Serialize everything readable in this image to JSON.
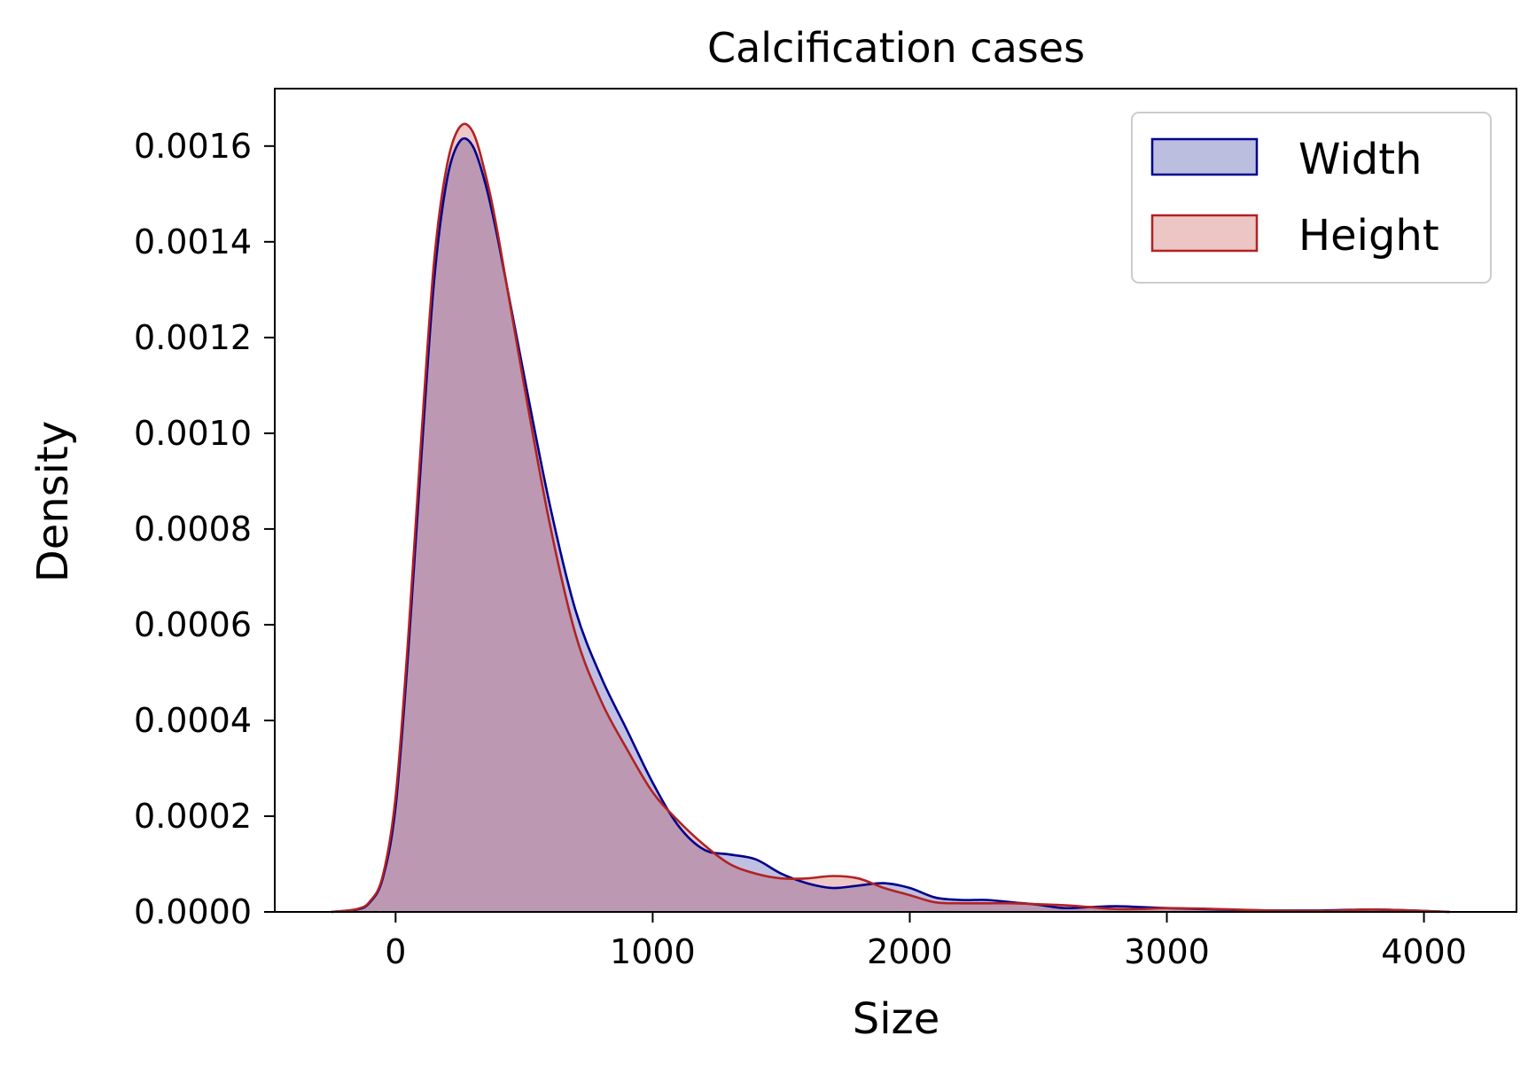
{
  "chart_data": {
    "type": "area",
    "title": "Calcification cases",
    "xlabel": "Size",
    "ylabel": "Density",
    "xlim": [
      -470,
      4360
    ],
    "ylim": [
      0,
      0.00172
    ],
    "x_ticks": [
      0,
      1000,
      2000,
      3000,
      4000
    ],
    "x_tick_labels": [
      "0",
      "1000",
      "2000",
      "3000",
      "4000"
    ],
    "y_ticks": [
      0,
      0.0002,
      0.0004,
      0.0006,
      0.0008,
      0.001,
      0.0012,
      0.0014,
      0.0016
    ],
    "y_tick_labels": [
      "0.0000",
      "0.0002",
      "0.0004",
      "0.0006",
      "0.0008",
      "0.0010",
      "0.0012",
      "0.0014",
      "0.0016"
    ],
    "grid": false,
    "legend_position": "top-right",
    "series": [
      {
        "name": "Width",
        "color": "#00008b",
        "fill": "#bcbee0",
        "x": [
          -250,
          -150,
          -100,
          -50,
          0,
          50,
          100,
          150,
          200,
          250,
          300,
          350,
          400,
          500,
          600,
          700,
          800,
          900,
          1000,
          1100,
          1200,
          1300,
          1400,
          1500,
          1600,
          1700,
          1800,
          1900,
          2000,
          2100,
          2200,
          2300,
          2400,
          2500,
          2600,
          2700,
          2800,
          2900,
          3000,
          3200,
          3400,
          3600,
          3800,
          4000,
          4100
        ],
        "y": [
          0.0,
          5e-06,
          2e-05,
          7e-05,
          0.00022,
          0.00055,
          0.00095,
          0.00132,
          0.00153,
          0.00161,
          0.0016,
          0.00152,
          0.0014,
          0.00112,
          0.00085,
          0.00063,
          0.00049,
          0.00038,
          0.00027,
          0.00018,
          0.00013,
          0.00012,
          0.00011,
          8e-05,
          6e-05,
          5e-05,
          5.5e-05,
          6e-05,
          5e-05,
          3e-05,
          2.5e-05,
          2.5e-05,
          2e-05,
          1.5e-05,
          8e-06,
          1e-05,
          1.2e-05,
          1e-05,
          8e-06,
          5e-06,
          3e-06,
          3e-06,
          5e-06,
          2e-06,
          0.0
        ]
      },
      {
        "name": "Height",
        "color": "#b22222",
        "fill": "#ecc5c5",
        "x": [
          -250,
          -150,
          -100,
          -50,
          0,
          50,
          100,
          150,
          200,
          250,
          300,
          350,
          400,
          500,
          600,
          700,
          800,
          900,
          1000,
          1100,
          1200,
          1300,
          1400,
          1500,
          1600,
          1700,
          1800,
          1900,
          2000,
          2100,
          2200,
          2300,
          2400,
          2500,
          2600,
          2700,
          2800,
          2900,
          3000,
          3200,
          3400,
          3600,
          3800,
          4000,
          4100
        ],
        "y": [
          0.0,
          6e-06,
          2.2e-05,
          7.5e-05,
          0.00024,
          0.00058,
          0.00099,
          0.00136,
          0.00156,
          0.00164,
          0.00163,
          0.00154,
          0.00141,
          0.0011,
          0.00081,
          0.00058,
          0.00044,
          0.00034,
          0.00025,
          0.00019,
          0.00014,
          0.0001,
          8e-05,
          7e-05,
          7e-05,
          7.5e-05,
          7e-05,
          5e-05,
          3.5e-05,
          2e-05,
          1.8e-05,
          1.8e-05,
          1.8e-05,
          1.6e-05,
          1.4e-05,
          1e-05,
          6e-06,
          6e-06,
          8e-06,
          6e-06,
          3e-06,
          2e-06,
          5e-06,
          2e-06,
          0.0
        ]
      }
    ]
  }
}
